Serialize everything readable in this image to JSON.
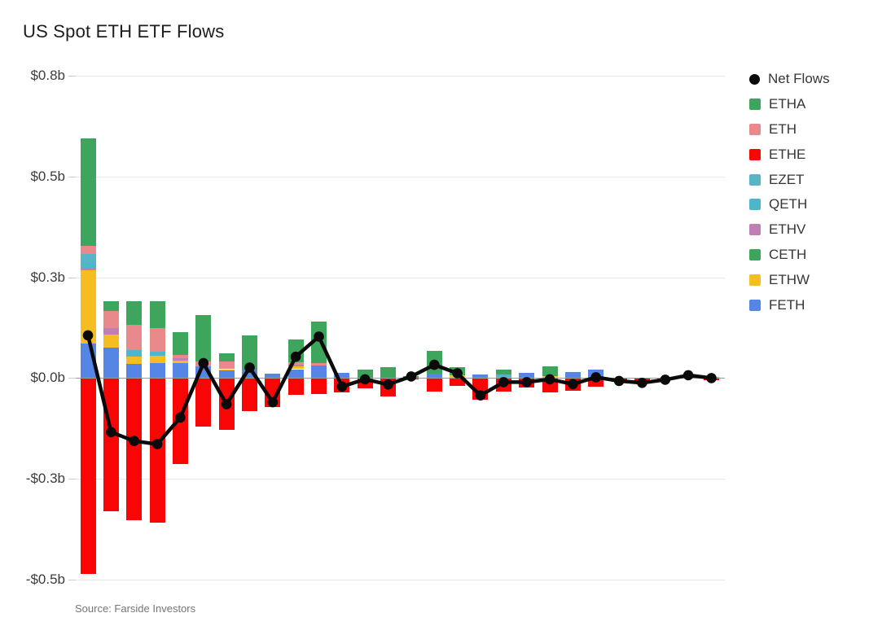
{
  "title": "US Spot ETH ETF Flows",
  "source_note": "Source: Farside Investors",
  "colors": {
    "net_flows": "#0a0a0a",
    "ETHA": "#3ea55c",
    "ETH": "#e9898c",
    "ETHE": "#f80505",
    "EZET": "#58b5c8",
    "QETH": "#4eb6c8",
    "ETHV": "#bf7fb5",
    "CETH": "#3ea55c",
    "ETHW": "#f5bd1f",
    "FETH": "#5585e5",
    "grid": "#e7e7e7",
    "zero_line": "#9a9a9a",
    "axis_text": "#3c3c3c",
    "title_text": "#1d1d1d",
    "source_text": "#757575"
  },
  "chart_data": {
    "type": "bar",
    "subtype": "stacked-bar-with-net-line",
    "title": "US Spot ETH ETF Flows",
    "unit": "billions USD",
    "ylim": [
      -0.5,
      0.75
    ],
    "grid": true,
    "legend_position": "right",
    "x_axis_labels_visible": false,
    "y_ticks": [
      {
        "value": 0.75,
        "label": "$0.8b"
      },
      {
        "value": 0.5,
        "label": "$0.5b"
      },
      {
        "value": 0.25,
        "label": "$0.3b"
      },
      {
        "value": 0.0,
        "label": "$0.0b"
      },
      {
        "value": -0.25,
        "label": "-$0.3b"
      },
      {
        "value": -0.5,
        "label": "-$0.5b"
      }
    ],
    "legend": [
      {
        "label": "Net Flows",
        "shape": "circle",
        "color": "#0a0a0a"
      },
      {
        "label": "ETHA",
        "shape": "square",
        "color": "#3ea55c"
      },
      {
        "label": "ETH",
        "shape": "square",
        "color": "#e9898c"
      },
      {
        "label": "ETHE",
        "shape": "square",
        "color": "#f80505"
      },
      {
        "label": "EZET",
        "shape": "square",
        "color": "#58b5c8"
      },
      {
        "label": "QETH",
        "shape": "square",
        "color": "#4eb6c8"
      },
      {
        "label": "ETHV",
        "shape": "square",
        "color": "#bf7fb5"
      },
      {
        "label": "CETH",
        "shape": "square",
        "color": "#3ea55c"
      },
      {
        "label": "ETHW",
        "shape": "square",
        "color": "#f5bd1f"
      },
      {
        "label": "FETH",
        "shape": "square",
        "color": "#5585e5"
      }
    ],
    "stack_order_bottom_up": [
      "FETH",
      "ETHW",
      "ETHV",
      "QETH",
      "EZET",
      "ETH",
      "CETH",
      "ETHA"
    ],
    "negative_series": "ETHE",
    "net_series_name": "Net Flows",
    "bars": [
      {
        "FETH": 0.085,
        "ETHW": 0.182,
        "ETHV": 0.005,
        "QETH": 0.015,
        "EZET": 0.02,
        "ETH": 0.02,
        "ETHA": 0.268,
        "ETHE": -0.484,
        "net": 0.106
      },
      {
        "FETH": 0.075,
        "ETHW": 0.033,
        "ETHV": 0.016,
        "ETH": 0.042,
        "ETHA": 0.024,
        "ETHE": -0.328,
        "net": -0.134
      },
      {
        "FETH": 0.036,
        "ETHW": 0.017,
        "QETH": 0.016,
        "ETH": 0.064,
        "ETHA": 0.057,
        "ETHE": -0.35,
        "net": -0.156
      },
      {
        "FETH": 0.038,
        "ETHW": 0.017,
        "QETH": 0.01,
        "ETH": 0.058,
        "ETHA": 0.067,
        "ETHE": -0.356,
        "net": -0.164
      },
      {
        "FETH": 0.038,
        "ETHW": 0.006,
        "ETHV": 0.006,
        "ETH": 0.008,
        "ETHA": 0.055,
        "ETHE": -0.211,
        "net": -0.098
      },
      {
        "FETH": 0.03,
        "ETH": 0.011,
        "ETHA": 0.115,
        "ETHE": -0.119,
        "net": 0.037
      },
      {
        "FETH": 0.018,
        "ETHW": 0.004,
        "ETH": 0.02,
        "ETHA": 0.019,
        "ETHE": -0.126,
        "net": -0.065
      },
      {
        "FETH": 0.02,
        "ETHA": 0.085,
        "ETHE": -0.079,
        "net": 0.026
      },
      {
        "FETH": 0.01,
        "ETHE": -0.07,
        "net": -0.06
      },
      {
        "FETH": 0.022,
        "ETHW": 0.008,
        "ETHV": 0.004,
        "ETH": 0.006,
        "ETHA": 0.055,
        "ETHE": -0.04,
        "net": 0.053
      },
      {
        "FETH": 0.032,
        "ETH": 0.006,
        "ETHA": 0.102,
        "ETHE": -0.037,
        "net": 0.103
      },
      {
        "FETH": 0.012,
        "ETHE": -0.033,
        "net": -0.021
      },
      {
        "ETHA": 0.021,
        "ETHE": -0.023,
        "net": -0.003
      },
      {
        "ETHA": 0.027,
        "ETHE": -0.043,
        "net": -0.016
      },
      {
        "ETHA": 0.005,
        "ETHE": -0.001,
        "net": 0.004
      },
      {
        "FETH": 0.01,
        "ETHA": 0.057,
        "ETHE": -0.032,
        "net": 0.033
      },
      {
        "ETHW": 0.006,
        "ETHA": 0.022,
        "ETHE": -0.018,
        "net": 0.012
      },
      {
        "FETH": 0.008,
        "ETHE": -0.051,
        "net": -0.043
      },
      {
        "EZET": 0.008,
        "ETHA": 0.012,
        "ETHE": -0.031,
        "net": -0.01
      },
      {
        "FETH": 0.012,
        "ETHE": -0.022,
        "net": -0.01
      },
      {
        "ETHW": 0.004,
        "ETHA": 0.026,
        "ETHE": -0.033,
        "net": -0.003
      },
      {
        "FETH": 0.015,
        "ETHE": -0.03,
        "net": -0.015
      },
      {
        "FETH": 0.021,
        "ETHE": -0.019,
        "net": 0.002
      },
      {
        "ETHE": -0.007,
        "net": -0.007
      },
      {
        "ETHE": -0.012,
        "net": -0.012
      },
      {
        "ETHE": -0.004,
        "net": -0.004
      },
      {
        "ETHA": 0.007,
        "net": 0.007
      },
      {
        "ETH": 0.003,
        "ETHE": -0.003,
        "net": 0.0
      }
    ]
  }
}
